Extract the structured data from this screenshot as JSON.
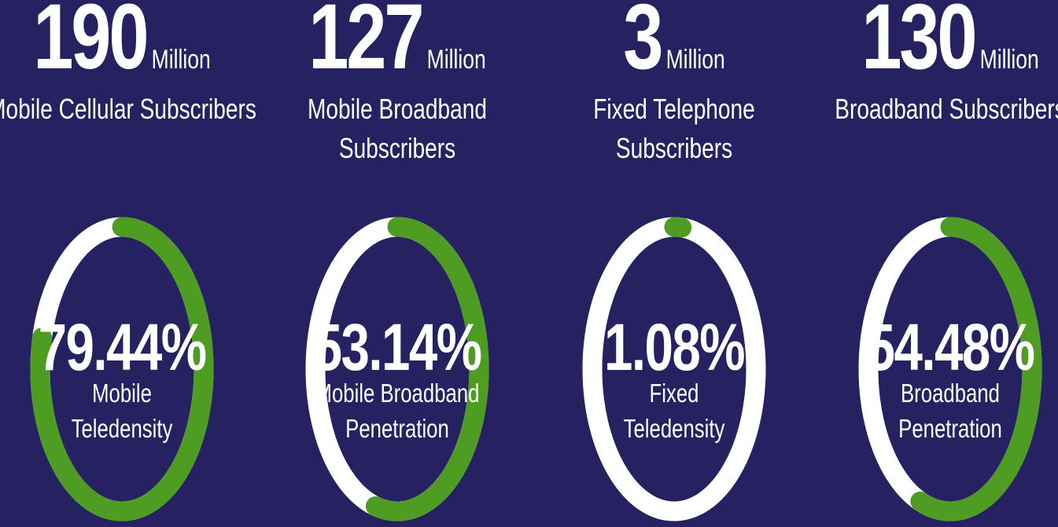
{
  "stats": [
    {
      "value": 190,
      "unit": "Million",
      "label": "Mobile Cellular Subscribers"
    },
    {
      "value": 127,
      "unit": "Million",
      "label": "Mobile Broadband\nSubscribers"
    },
    {
      "value": 3,
      "unit": "Million",
      "label": "Fixed Telephone Subscribers"
    },
    {
      "value": 130,
      "unit": "Million",
      "label": "Broadband Subscribers"
    }
  ],
  "gauges": [
    {
      "value": 79.44,
      "value_label": "79.44%",
      "label": "Mobile\nTeledensity"
    },
    {
      "value": 53.14,
      "value_label": "53.14%",
      "label": "Mobile Broadband\nPenetration"
    },
    {
      "value": 1.08,
      "value_label": "1.08%",
      "label": "Fixed\nTeledensity"
    },
    {
      "value": 54.48,
      "value_label": "54.48%",
      "label": "Broadband\nPenetration"
    }
  ],
  "max": 100,
  "colors": {
    "background": "#262262",
    "track": "#ffffff",
    "fill": "#4f9c23"
  }
}
